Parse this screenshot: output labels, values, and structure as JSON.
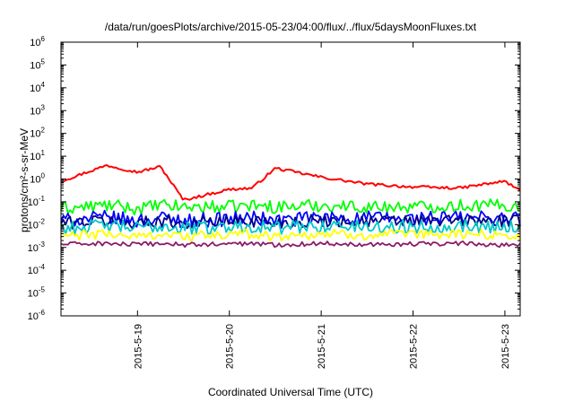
{
  "chart_data": {
    "type": "line",
    "title": "/data/run/goesPlots/archive/2015-05-23/04:00/flux/../flux/5daysMoonFluxes.txt",
    "xlabel": "Coordinated Universal Time (UTC)",
    "ylabel": "protons/cm²-s-sr-MeV",
    "yscale": "log",
    "ylim": [
      1e-06,
      1000000.0
    ],
    "yticks": [
      {
        "value": 1e-06,
        "label_base": "10",
        "label_exp": "-6"
      },
      {
        "value": 1e-05,
        "label_base": "10",
        "label_exp": "-5"
      },
      {
        "value": 0.0001,
        "label_base": "10",
        "label_exp": "-4"
      },
      {
        "value": 0.001,
        "label_base": "10",
        "label_exp": "-3"
      },
      {
        "value": 0.01,
        "label_base": "10",
        "label_exp": "-2"
      },
      {
        "value": 0.1,
        "label_base": "10",
        "label_exp": "-1"
      },
      {
        "value": 1,
        "label_base": "10",
        "label_exp": "0"
      },
      {
        "value": 10,
        "label_base": "10",
        "label_exp": "1"
      },
      {
        "value": 100,
        "label_base": "10",
        "label_exp": "2"
      },
      {
        "value": 1000,
        "label_base": "10",
        "label_exp": "3"
      },
      {
        "value": 10000,
        "label_base": "10",
        "label_exp": "4"
      },
      {
        "value": 100000,
        "label_base": "10",
        "label_exp": "5"
      },
      {
        "value": 1000000,
        "label_base": "10",
        "label_exp": "6"
      }
    ],
    "xlim": [
      "2015-05-18T04:00",
      "2015-05-23T04:00"
    ],
    "xticks": [
      "2015-5-19",
      "2015-5-20",
      "2015-5-21",
      "2015-5-22",
      "2015-5-23"
    ],
    "grid": false,
    "legend": "none",
    "x": [
      "2015-05-18T04:00",
      "2015-05-18T16:00",
      "2015-05-19T00:00",
      "2015-05-19T06:00",
      "2015-05-19T12:00",
      "2015-05-20T00:00",
      "2015-05-20T06:00",
      "2015-05-20T12:00",
      "2015-05-21T00:00",
      "2015-05-21T12:00",
      "2015-05-22T00:00",
      "2015-05-22T12:00",
      "2015-05-23T00:00",
      "2015-05-23T04:00"
    ],
    "series": [
      {
        "color": "#ff0000",
        "values": [
          0.8,
          4.0,
          2.0,
          3.5,
          0.12,
          0.35,
          0.4,
          3.0,
          1.2,
          0.6,
          0.45,
          0.4,
          0.8,
          0.3
        ]
      },
      {
        "color": "#00ff00",
        "values": [
          0.05,
          0.07,
          0.05,
          0.07,
          0.06,
          0.06,
          0.07,
          0.06,
          0.07,
          0.06,
          0.06,
          0.07,
          0.07,
          0.06
        ]
      },
      {
        "color": "#0000ff",
        "values": [
          0.015,
          0.02,
          0.015,
          0.02,
          0.015,
          0.018,
          0.02,
          0.015,
          0.02,
          0.02,
          0.018,
          0.02,
          0.02,
          0.02
        ]
      },
      {
        "color": "#00008b",
        "values": [
          0.012,
          0.015,
          0.012,
          0.015,
          0.012,
          0.014,
          0.015,
          0.012,
          0.015,
          0.014,
          0.014,
          0.015,
          0.014,
          0.013
        ]
      },
      {
        "color": "#00c8c8",
        "values": [
          0.007,
          0.009,
          0.007,
          0.009,
          0.007,
          0.008,
          0.009,
          0.007,
          0.009,
          0.008,
          0.008,
          0.009,
          0.008,
          0.008
        ]
      },
      {
        "color": "#ffff00",
        "values": [
          0.003,
          0.004,
          0.003,
          0.004,
          0.003,
          0.0035,
          0.004,
          0.003,
          0.004,
          0.0035,
          0.0035,
          0.004,
          0.0035,
          0.003
        ]
      },
      {
        "color": "#8b1a6b",
        "values": [
          0.0014,
          0.0015,
          0.0013,
          0.0015,
          0.0013,
          0.0014,
          0.0015,
          0.0013,
          0.0015,
          0.0014,
          0.0014,
          0.0015,
          0.0013,
          0.0014
        ]
      }
    ]
  }
}
